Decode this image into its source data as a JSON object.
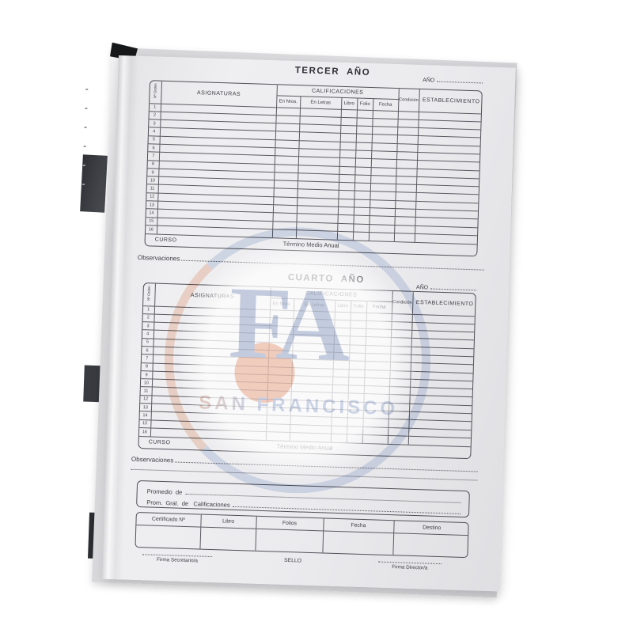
{
  "document": {
    "year_tables": [
      {
        "title": "TERCER  AÑO",
        "year_label": "AÑO"
      },
      {
        "title": "CUARTO  AÑO",
        "year_label": "AÑO"
      }
    ],
    "grade_table": {
      "order_column": "Nº Orden",
      "subjects_column": "ASIGNATURAS",
      "grades_group": "CALIFICACIONES",
      "grade_columns": [
        "En Nros.",
        "En Letras",
        "Libro",
        "Folio",
        "Fecha"
      ],
      "condition_column": "Condición",
      "establishment_column": "ESTABLECIMIENTO",
      "row_numbers": [
        "1",
        "2",
        "3",
        "4",
        "5",
        "6",
        "7",
        "8",
        "9",
        "10",
        "11",
        "12",
        "13",
        "14",
        "15",
        "16"
      ],
      "footer_course": "CURSO",
      "footer_term": "Término Medio Anual"
    },
    "observations_label": "Observaciones",
    "averages_box": {
      "line1": "Promedio  de",
      "line2": "Prom.  Gral.  de   Calificaciones"
    },
    "certificate_table": {
      "headers": [
        "Certificado Nº",
        "Libro",
        "Folios",
        "Fecha",
        "Destino"
      ]
    },
    "signature_area": {
      "secretary": "Firma Secretario/a",
      "seal": "SELLO",
      "director": "Firma Director/a"
    },
    "watermark": {
      "monogram": "FA",
      "school_name": "SAN FRANCISCO",
      "blue": "#8fa0c6",
      "orange": "#eba181"
    }
  }
}
